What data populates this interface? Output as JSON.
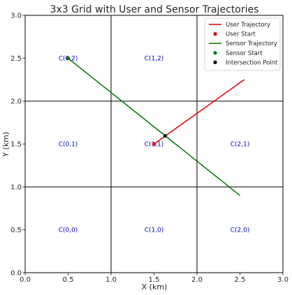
{
  "chart_data": {
    "type": "line",
    "title": "3x3 Grid with User and Sensor Trajectories",
    "xlabel": "X (km)",
    "ylabel": "Y (km)",
    "xlim": [
      0,
      3
    ],
    "ylim": [
      0,
      3
    ],
    "xticks": [
      "0.0",
      "0.5",
      "1.0",
      "1.5",
      "2.0",
      "2.5",
      "3.0"
    ],
    "yticks": [
      "0.0",
      "0.5",
      "1.0",
      "1.5",
      "2.0",
      "2.5",
      "3.0"
    ],
    "grid_lines": [
      1,
      2
    ],
    "cells": [
      {
        "label": "C(0,0)",
        "x": 0.5,
        "y": 0.5
      },
      {
        "label": "C(1,0)",
        "x": 1.5,
        "y": 0.5
      },
      {
        "label": "C(2,0)",
        "x": 2.5,
        "y": 0.5
      },
      {
        "label": "C(0,1)",
        "x": 0.5,
        "y": 1.5
      },
      {
        "label": "C(1,1)",
        "x": 1.5,
        "y": 1.5
      },
      {
        "label": "C(2,1)",
        "x": 2.5,
        "y": 1.5
      },
      {
        "label": "C(0,2)",
        "x": 0.5,
        "y": 2.5
      },
      {
        "label": "C(1,2)",
        "x": 1.5,
        "y": 2.5
      }
    ],
    "series": [
      {
        "name": "User Trajectory",
        "kind": "line",
        "color": "#dd0000",
        "points": [
          [
            1.5,
            1.5
          ],
          [
            2.55,
            2.25
          ]
        ]
      },
      {
        "name": "User Start",
        "kind": "point",
        "color": "#dd0000",
        "points": [
          [
            1.5,
            1.5
          ]
        ]
      },
      {
        "name": "Sensor Trajectory",
        "kind": "line",
        "color": "#007700",
        "points": [
          [
            0.5,
            2.5
          ],
          [
            2.5,
            0.9
          ]
        ]
      },
      {
        "name": "Sensor Start",
        "kind": "point",
        "color": "#007700",
        "points": [
          [
            0.5,
            2.5
          ]
        ]
      },
      {
        "name": "Intersection Point",
        "kind": "point",
        "color": "#000000",
        "points": [
          [
            1.63,
            1.595
          ]
        ]
      }
    ],
    "legend": {
      "placement": "top-right"
    }
  }
}
